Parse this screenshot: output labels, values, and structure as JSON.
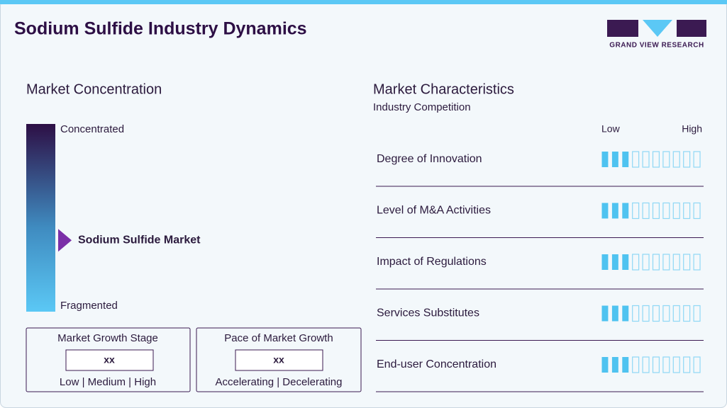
{
  "header": {
    "title": "Sodium Sulfide Industry Dynamics",
    "logo": "GRAND VIEW RESEARCH"
  },
  "concentration": {
    "title": "Market Concentration",
    "top_label": "Concentrated",
    "bottom_label": "Fragmented",
    "marker_label": "Sodium Sulfide Market",
    "marker_position": 38
  },
  "growth_stage": {
    "title": "Market Growth Stage",
    "value": "xx",
    "scale_text": "Low | Medium | High"
  },
  "growth_pace": {
    "title": "Pace of Market Growth",
    "value": "xx",
    "scale_text": "Accelerating | Decelerating"
  },
  "characteristics": {
    "title": "Market Characteristics",
    "subtitle": "Industry Competition",
    "low_label": "Low",
    "high_label": "High",
    "levels": 10,
    "rows": [
      {
        "label": "Degree of Innovation",
        "level": 3
      },
      {
        "label": "Level of M&A Activities",
        "level": 3
      },
      {
        "label": "Impact of Regulations",
        "level": 3
      },
      {
        "label": "Services Substitutes",
        "level": 3
      },
      {
        "label": "End-user Concentration",
        "level": 3
      }
    ]
  }
}
